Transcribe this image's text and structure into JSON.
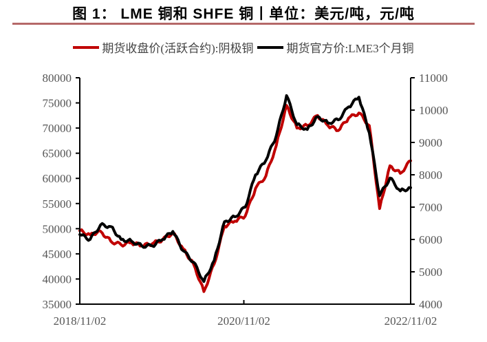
{
  "title": "图 1： LME 铜和 SHFE 铜丨单位：美元/吨，元/吨",
  "colors": {
    "shfe": "#c00000",
    "lme": "#000000",
    "rule": "#b56868",
    "axis": "#000000",
    "label": "#555555"
  },
  "legend": [
    {
      "label": "期货收盘价(活跃合约):阴极铜",
      "color": "#c00000"
    },
    {
      "label": "期货官方价:LME3个月铜",
      "color": "#000000"
    }
  ],
  "chart_data": {
    "type": "line",
    "title": "图 1： LME 铜和 SHFE 铜丨单位：美元/吨，元/吨",
    "xlabel": "",
    "ylabel_left": "元/吨",
    "ylabel_right": "美元/吨",
    "x_tick_labels": [
      "2018/11/02",
      "2020/11/02",
      "2022/11/02"
    ],
    "y_left": {
      "min": 35000,
      "max": 80000,
      "ticks": [
        35000,
        40000,
        45000,
        50000,
        55000,
        60000,
        65000,
        70000,
        75000,
        80000
      ]
    },
    "y_right": {
      "min": 4000,
      "max": 11000,
      "ticks": [
        4000,
        5000,
        6000,
        7000,
        8000,
        9000,
        10000,
        11000
      ]
    },
    "grid": false,
    "legend_position": "top",
    "x": [
      "2018/11",
      "2019/01",
      "2019/03",
      "2019/04",
      "2019/05",
      "2019/07",
      "2019/08",
      "2019/10",
      "2019/12",
      "2020/01",
      "2020/02",
      "2020/03",
      "2020/04",
      "2020/06",
      "2020/08",
      "2020/10",
      "2020/12",
      "2021/01",
      "2021/02",
      "2021/03",
      "2021/05",
      "2021/06",
      "2021/08",
      "2021/10",
      "2021/11",
      "2022/01",
      "2022/03",
      "2022/04",
      "2022/05",
      "2022/07",
      "2022/08",
      "2022/10",
      "2022/11"
    ],
    "series": [
      {
        "name": "期货收盘价(活跃合约):阴极铜",
        "axis": "left",
        "color": "#c00000",
        "values": [
          49600,
          48800,
          49500,
          47500,
          46800,
          47200,
          46600,
          47000,
          47800,
          49200,
          46000,
          43000,
          37500,
          43000,
          50500,
          51500,
          52500,
          58000,
          60500,
          66500,
          74500,
          70000,
          70500,
          72500,
          70500,
          69500,
          72000,
          73000,
          70500,
          54000,
          62500,
          61000,
          63500
        ]
      },
      {
        "name": "期货官方价:LME3个月铜",
        "axis": "right",
        "color": "#000000",
        "values": [
          6150,
          6000,
          6450,
          6400,
          6000,
          5950,
          5800,
          5800,
          6000,
          6250,
          5650,
          5300,
          4700,
          5350,
          6550,
          6700,
          7000,
          8000,
          8450,
          9200,
          10450,
          9550,
          9400,
          9800,
          9600,
          9700,
          10100,
          10400,
          9300,
          7350,
          7900,
          7500,
          7600
        ]
      }
    ]
  }
}
